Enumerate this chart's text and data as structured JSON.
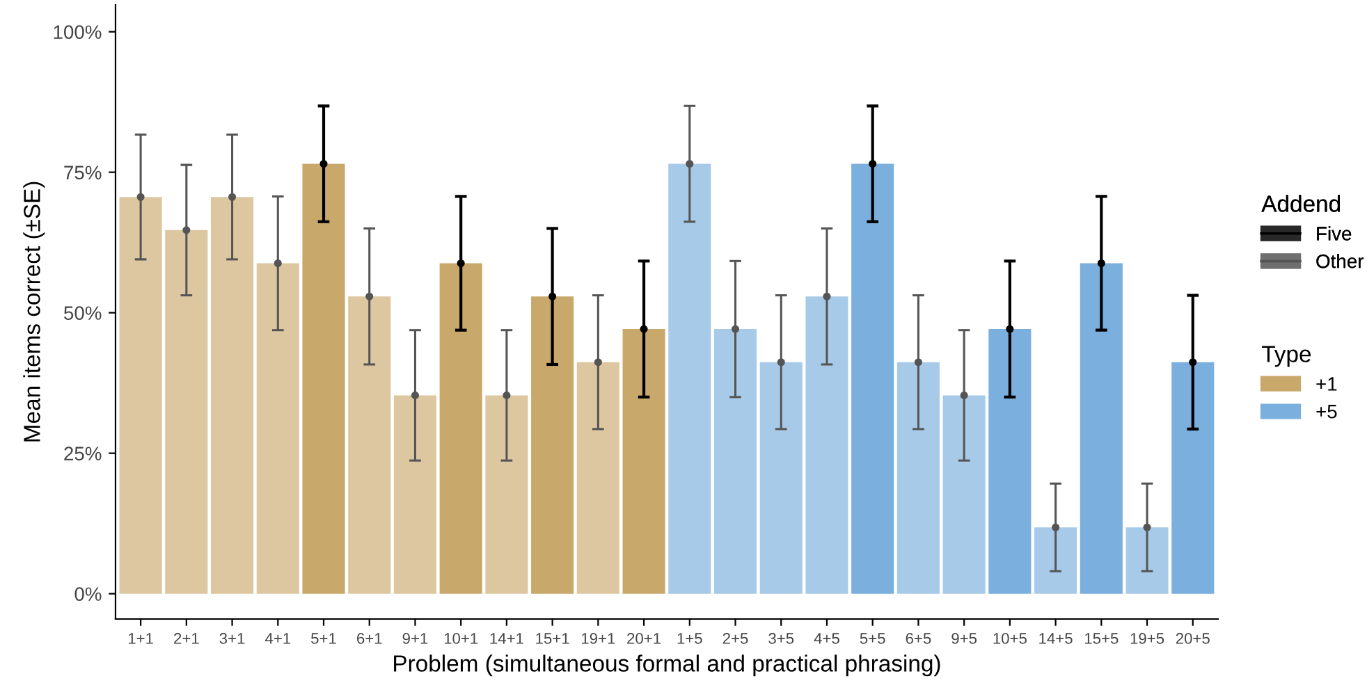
{
  "chart_data": {
    "type": "bar",
    "xlabel": "Problem (simultaneous formal and practical phrasing)",
    "ylabel": "Mean items correct (±SE)",
    "categories": [
      "1+1",
      "2+1",
      "3+1",
      "4+1",
      "5+1",
      "6+1",
      "9+1",
      "10+1",
      "14+1",
      "15+1",
      "19+1",
      "20+1",
      "1+5",
      "2+5",
      "3+5",
      "4+5",
      "5+5",
      "6+5",
      "9+5",
      "10+5",
      "14+5",
      "15+5",
      "19+5",
      "20+5"
    ],
    "series": [
      {
        "name": "+1",
        "color": "#c8a86b",
        "colors": [
          "#dcc7a0",
          "#dcc7a0",
          "#dcc7a0",
          "#dcc7a0",
          "#c8a86b",
          "#dcc7a0",
          "#dcc7a0",
          "#c8a86b",
          "#dcc7a0",
          "#c8a86b",
          "#dcc7a0",
          "#c8a86b",
          null,
          null,
          null,
          null,
          null,
          null,
          null,
          null,
          null,
          null,
          null,
          null
        ],
        "values": [
          70.6,
          64.7,
          70.6,
          58.8,
          76.5,
          52.9,
          35.3,
          58.8,
          35.3,
          52.9,
          41.2,
          47.1,
          null,
          null,
          null,
          null,
          null,
          null,
          null,
          null,
          null,
          null,
          null,
          null
        ]
      },
      {
        "name": "+5",
        "color": "#7bafde",
        "colors": [
          null,
          null,
          null,
          null,
          null,
          null,
          null,
          null,
          null,
          null,
          null,
          null,
          "#a8cae9",
          "#a8cae9",
          "#a8cae9",
          "#a8cae9",
          "#7bafde",
          "#a8cae9",
          "#a8cae9",
          "#7bafde",
          "#a8cae9",
          "#7bafde",
          "#a8cae9",
          "#7bafde"
        ],
        "values": [
          null,
          null,
          null,
          null,
          null,
          null,
          null,
          null,
          null,
          null,
          null,
          null,
          76.5,
          47.1,
          41.2,
          52.9,
          76.5,
          41.2,
          35.3,
          47.1,
          11.8,
          58.8,
          11.8,
          41.2
        ]
      },
      {
        "name": "Five",
        "type": "scatter",
        "marker": "circle",
        "color": "#000000",
        "values": [
          null,
          null,
          null,
          null,
          76.5,
          null,
          null,
          58.8,
          null,
          52.9,
          null,
          47.1,
          null,
          null,
          null,
          null,
          76.5,
          null,
          null,
          47.1,
          null,
          58.8,
          null,
          41.2
        ],
        "errors": [
          null,
          null,
          null,
          null,
          10.3,
          null,
          null,
          11.9,
          null,
          12.1,
          null,
          12.1,
          null,
          null,
          null,
          null,
          10.3,
          null,
          null,
          12.1,
          null,
          11.9,
          null,
          11.9
        ]
      },
      {
        "name": "Other",
        "type": "scatter",
        "marker": "circle",
        "color": "#555555",
        "values": [
          70.6,
          64.7,
          70.6,
          58.8,
          null,
          52.9,
          35.3,
          null,
          35.3,
          null,
          41.2,
          null,
          76.5,
          47.1,
          41.2,
          52.9,
          null,
          41.2,
          35.3,
          null,
          11.8,
          null,
          11.8,
          null
        ],
        "errors": [
          11.1,
          11.6,
          11.1,
          11.9,
          null,
          12.1,
          11.6,
          null,
          11.6,
          null,
          11.9,
          null,
          10.3,
          12.1,
          11.9,
          12.1,
          null,
          11.9,
          11.6,
          null,
          7.8,
          null,
          7.8,
          null
        ]
      }
    ],
    "annotations": [
      "Addend"
    ],
    "legend_title": "Type",
    "legend": "right",
    "ylim": [
      -4.5,
      104.8
    ],
    "yticks": [
      {
        "value": 0,
        "label": "0%"
      },
      {
        "value": 25,
        "label": "25%"
      },
      {
        "value": 50,
        "label": "50%"
      },
      {
        "value": 75,
        "label": "75%"
      },
      {
        "value": 100,
        "label": "100%"
      }
    ],
    "grid": false
  }
}
